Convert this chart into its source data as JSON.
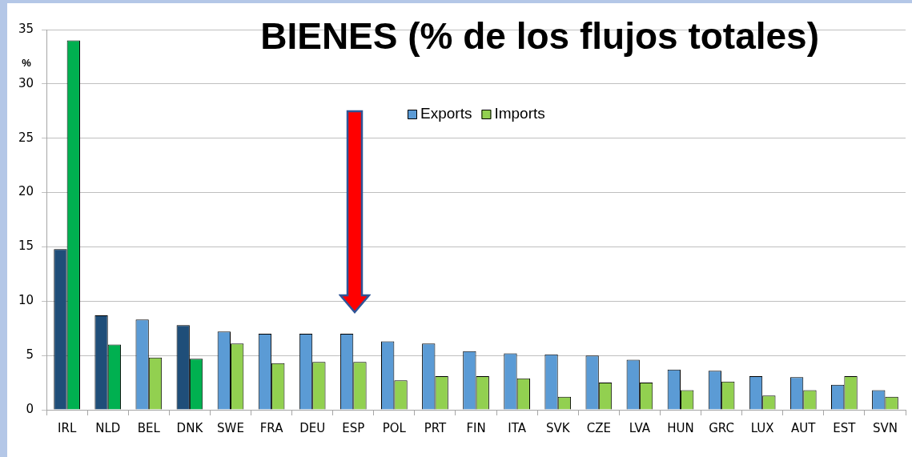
{
  "chart_data": {
    "type": "bar",
    "title": "BIENES (% de los flujos totales)",
    "ylabel": "%",
    "categories": [
      "IRL",
      "NLD",
      "BEL",
      "DNK",
      "SWE",
      "FRA",
      "DEU",
      "ESP",
      "POL",
      "PRT",
      "FIN",
      "ITA",
      "SVK",
      "CZE",
      "LVA",
      "HUN",
      "GRC",
      "LUX",
      "AUT",
      "EST",
      "SVN"
    ],
    "series": [
      {
        "name": "Exports",
        "color": "#5b9bd5",
        "colors": [
          "#1f4e79",
          "#1f4e79",
          "#5b9bd5",
          "#1f4e79",
          "#5b9bd5",
          "#5b9bd5",
          "#5b9bd5",
          "#5b9bd5",
          "#5b9bd5",
          "#5b9bd5",
          "#5b9bd5",
          "#5b9bd5",
          "#5b9bd5",
          "#5b9bd5",
          "#5b9bd5",
          "#5b9bd5",
          "#5b9bd5",
          "#5b9bd5",
          "#5b9bd5",
          "#5b9bd5",
          "#5b9bd5"
        ],
        "values": [
          14.8,
          8.7,
          8.3,
          7.8,
          7.2,
          7.0,
          7.0,
          7.0,
          6.3,
          6.1,
          5.4,
          5.2,
          5.1,
          5.0,
          4.6,
          3.7,
          3.6,
          3.1,
          3.0,
          2.3,
          1.8
        ]
      },
      {
        "name": "Imports",
        "color": "#92d050",
        "colors": [
          "#00b050",
          "#00b050",
          "#92d050",
          "#00b050",
          "#92d050",
          "#92d050",
          "#92d050",
          "#92d050",
          "#92d050",
          "#92d050",
          "#92d050",
          "#92d050",
          "#92d050",
          "#92d050",
          "#92d050",
          "#92d050",
          "#92d050",
          "#92d050",
          "#92d050",
          "#92d050",
          "#92d050"
        ],
        "values": [
          34.0,
          6.0,
          4.8,
          4.7,
          6.1,
          4.3,
          4.4,
          4.4,
          2.7,
          3.1,
          3.1,
          2.9,
          1.2,
          2.5,
          2.5,
          1.8,
          2.6,
          1.3,
          1.8,
          3.1,
          1.2
        ]
      }
    ],
    "ylim": [
      0,
      35
    ],
    "yticks": [
      0,
      5,
      10,
      15,
      20,
      25,
      30,
      35
    ],
    "grid": "y",
    "legend": "top"
  }
}
